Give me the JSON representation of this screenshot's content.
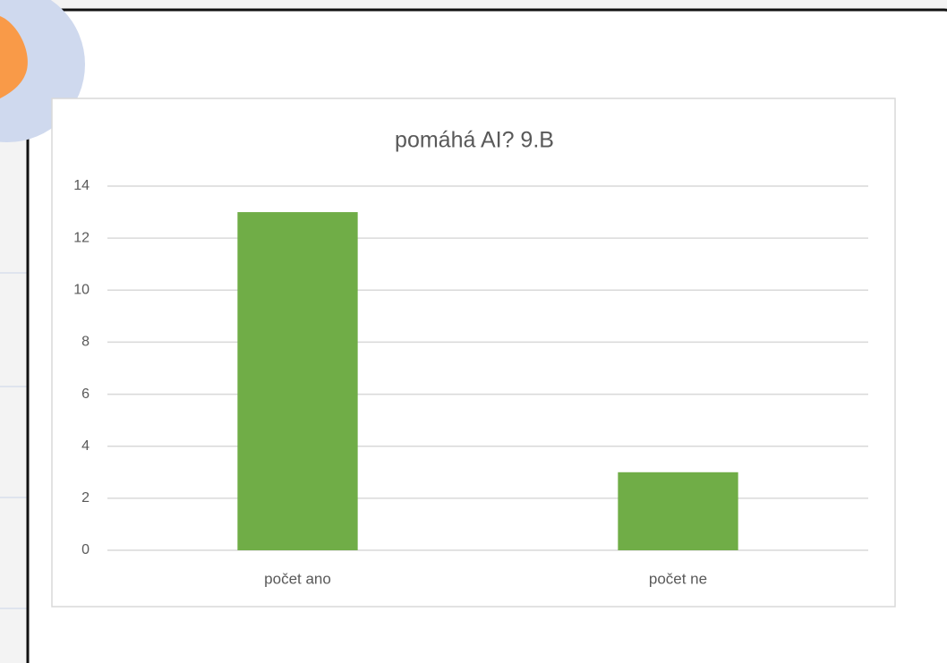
{
  "chart_data": {
    "type": "bar",
    "title": "pomáhá AI?  9.B",
    "categories": [
      "počet ano",
      "počet ne"
    ],
    "values": [
      13,
      3
    ],
    "color": "#70ad47",
    "ylim": [
      0,
      14
    ],
    "yticks": [
      0,
      2,
      4,
      6,
      8,
      10,
      12,
      14
    ],
    "grid": true
  }
}
